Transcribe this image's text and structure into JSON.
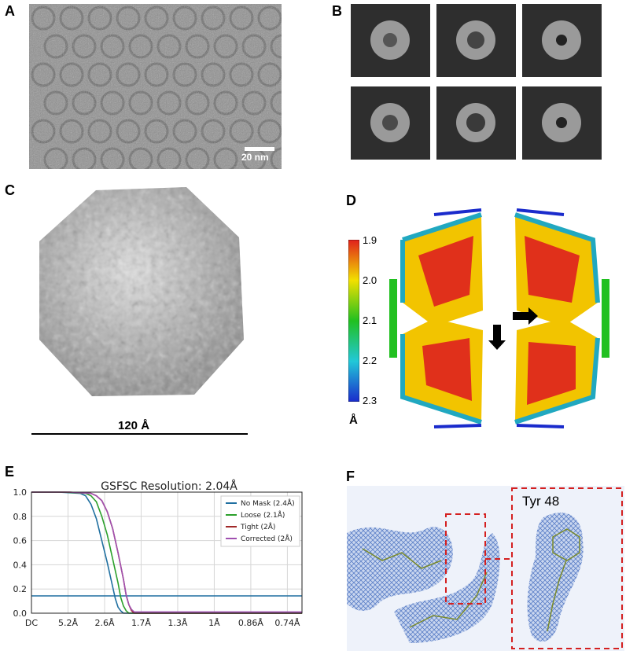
{
  "panels": {
    "A": {
      "label": "A",
      "scale_bar": "20 nm"
    },
    "B": {
      "label": "B"
    },
    "C": {
      "label": "C",
      "scale_label": "120 Å"
    },
    "D": {
      "label": "D",
      "colorbar_ticks": [
        "1.9",
        "2.0",
        "2.1",
        "2.2",
        "2.3"
      ],
      "colorbar_unit": "Å",
      "colors": {
        "high": "#e0201b",
        "mid": "#f2e000",
        "low_mid": "#21c020",
        "low": "#1a2bcc"
      }
    },
    "E": {
      "label": "E"
    },
    "F": {
      "label": "F",
      "residue_label": "Tyr 48",
      "box_color": "#d42020",
      "mesh_color": "#5b7fc7"
    }
  },
  "chart_data": {
    "type": "line",
    "title": "GSFSC Resolution: 2.04Å",
    "xlabel": "",
    "ylabel": "",
    "x_tick_labels": [
      "DC",
      "5.2Å",
      "2.6Å",
      "1.7Å",
      "1.3Å",
      "1Å",
      "0.86Å",
      "0.74Å"
    ],
    "y_ticks": [
      "0.0",
      "0.2",
      "0.4",
      "0.6",
      "0.8",
      "1.0"
    ],
    "ylim": [
      0,
      1
    ],
    "xlim": [
      0,
      1
    ],
    "threshold": 0.143,
    "grid": true,
    "legend_position": "top-right",
    "series": [
      {
        "name": "No Mask (2.4Å)",
        "color": "#1f6fa0",
        "x": [
          0,
          0.1,
          0.18,
          0.2,
          0.22,
          0.24,
          0.26,
          0.28,
          0.3,
          0.31,
          0.32,
          0.33,
          0.34,
          0.4,
          1.0
        ],
        "y": [
          1,
          1,
          0.99,
          0.97,
          0.9,
          0.78,
          0.6,
          0.42,
          0.22,
          0.12,
          0.05,
          0.02,
          0.0,
          0.0,
          0.0
        ]
      },
      {
        "name": "Loose (2.1Å)",
        "color": "#2ca02c",
        "x": [
          0,
          0.12,
          0.2,
          0.22,
          0.24,
          0.26,
          0.28,
          0.3,
          0.32,
          0.33,
          0.34,
          0.35,
          0.36,
          0.4,
          1.0
        ],
        "y": [
          1,
          1,
          0.99,
          0.97,
          0.92,
          0.8,
          0.65,
          0.45,
          0.25,
          0.13,
          0.06,
          0.02,
          0.0,
          0.0,
          0.0
        ]
      },
      {
        "name": "Tight (2Å)",
        "color": "#a02828",
        "x": [
          0,
          0.14,
          0.22,
          0.24,
          0.26,
          0.28,
          0.3,
          0.32,
          0.34,
          0.35,
          0.36,
          0.37,
          0.38,
          0.42,
          1.0
        ],
        "y": [
          1,
          1,
          0.99,
          0.97,
          0.93,
          0.84,
          0.7,
          0.5,
          0.28,
          0.15,
          0.07,
          0.02,
          0.0,
          0.0,
          0.0
        ]
      },
      {
        "name": "Corrected (2Å)",
        "color": "#a050b0",
        "x": [
          0,
          0.14,
          0.22,
          0.24,
          0.26,
          0.28,
          0.3,
          0.32,
          0.34,
          0.35,
          0.36,
          0.37,
          0.38,
          0.42,
          1.0
        ],
        "y": [
          1,
          1,
          0.99,
          0.97,
          0.93,
          0.84,
          0.7,
          0.5,
          0.28,
          0.15,
          0.07,
          0.03,
          0.01,
          0.01,
          0.01
        ]
      }
    ]
  }
}
